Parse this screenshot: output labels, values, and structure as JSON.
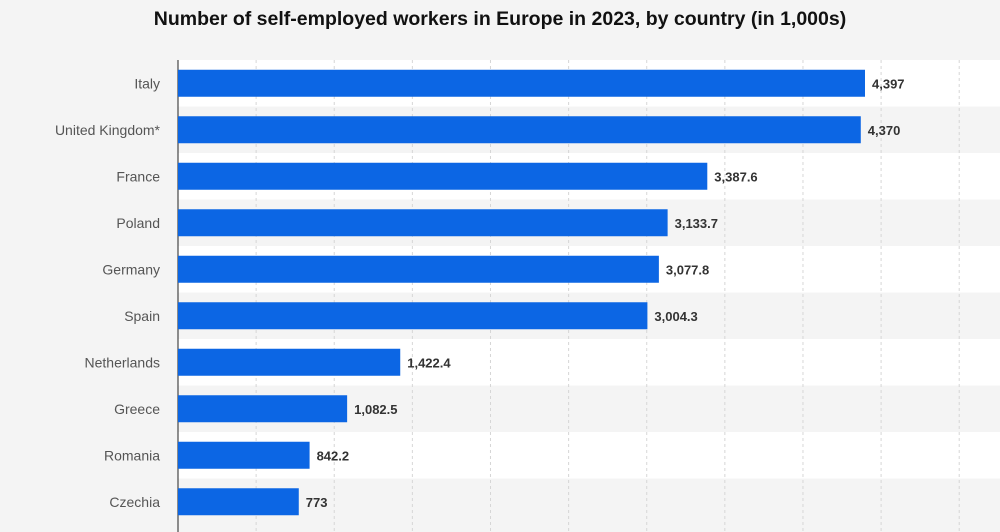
{
  "chart_data": {
    "type": "bar",
    "orientation": "horizontal",
    "title": "Number of self-employed workers in Europe in 2023, by country (in 1,000s)",
    "categories": [
      "Italy",
      "United Kingdom*",
      "France",
      "Poland",
      "Germany",
      "Spain",
      "Netherlands",
      "Greece",
      "Romania",
      "Czechia"
    ],
    "values": [
      4397,
      4370,
      3387.6,
      3133.7,
      3077.8,
      3004.3,
      1422.4,
      1082.5,
      842.2,
      773
    ],
    "value_labels": [
      "4,397",
      "4,370",
      "3,387.6",
      "3,133.7",
      "3,077.8",
      "3,004.3",
      "1,422.4",
      "1,082.5",
      "842.2",
      "773"
    ],
    "xlim": [
      0,
      5000
    ],
    "grid": true,
    "bar_color": "#0c66e4"
  }
}
